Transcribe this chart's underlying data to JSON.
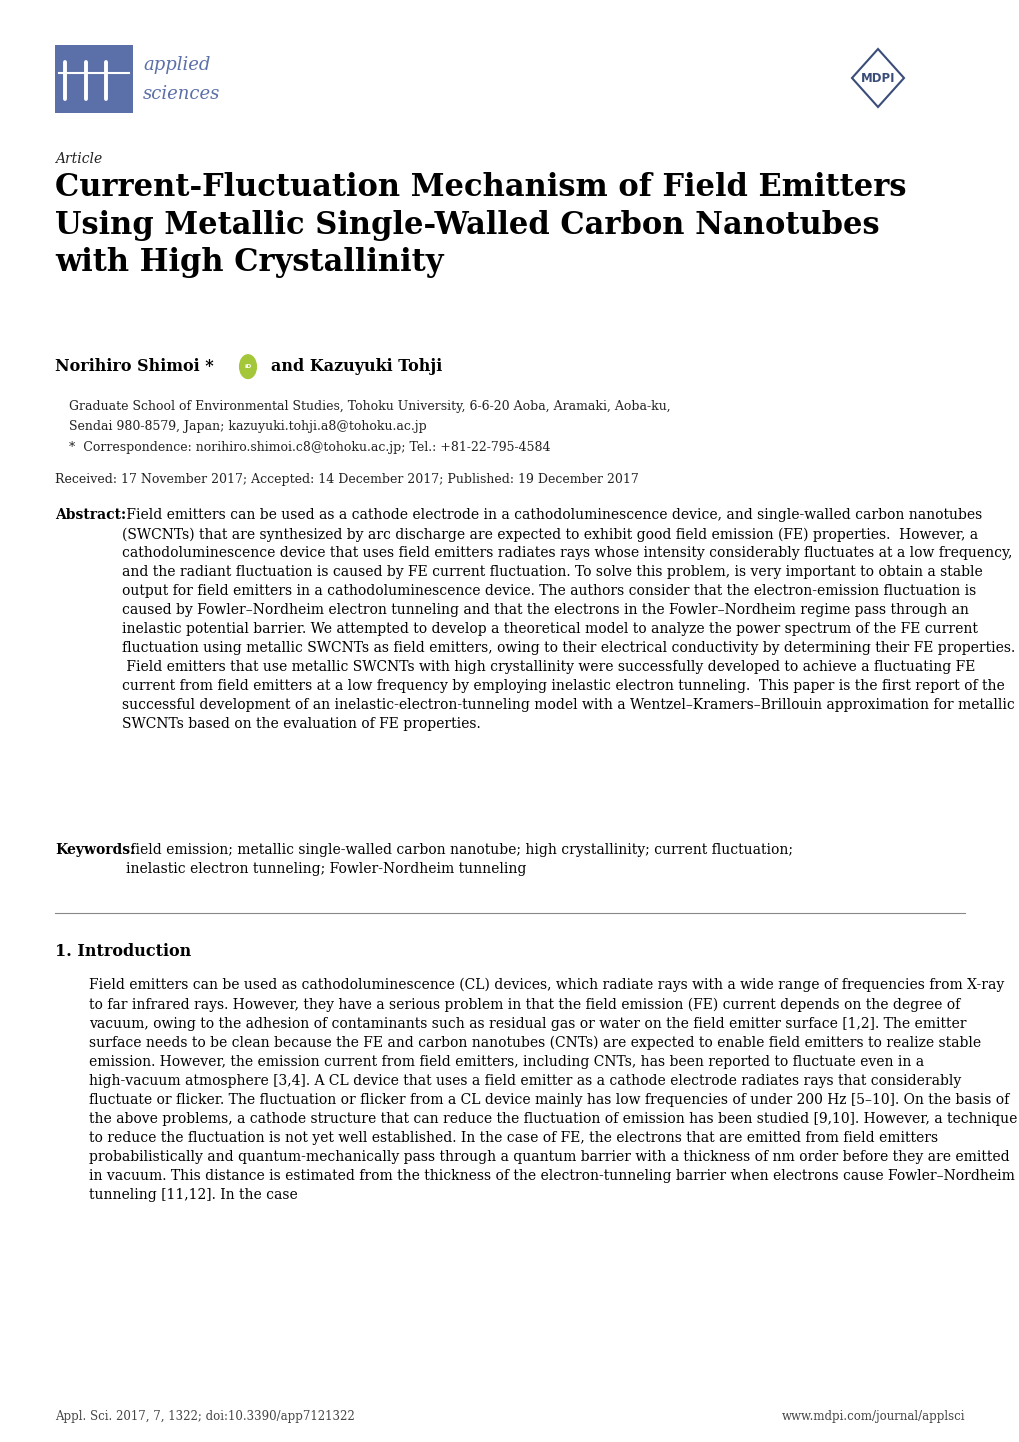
{
  "bg_color": "#ffffff",
  "page_width": 10.2,
  "page_height": 14.42,
  "journal_name_line1": "applied",
  "journal_name_line2": "sciences",
  "article_label": "Article",
  "title": "Current-Fluctuation Mechanism of Field Emitters\nUsing Metallic Single-Walled Carbon Nanotubes\nwith High Crystallinity",
  "affiliation1": "Graduate School of Environmental Studies, Tohoku University, 6-6-20 Aoba, Aramaki, Aoba-ku,",
  "affiliation2": "Sendai 980-8579, Japan; kazuyuki.tohji.a8@tohoku.ac.jp",
  "correspondence": "*  Correspondence: norihiro.shimoi.c8@tohoku.ac.jp; Tel.: +81-22-795-4584",
  "received": "Received: 17 November 2017; Accepted: 14 December 2017; Published: 19 December 2017",
  "abstract_label": "Abstract:",
  "abstract_text": " Field emitters can be used as a cathode electrode in a cathodoluminescence device, and single-walled carbon nanotubes (SWCNTs) that are synthesized by arc discharge are expected to exhibit good field emission (FE) properties.  However, a cathodoluminescence device that uses field emitters radiates rays whose intensity considerably fluctuates at a low frequency, and the radiant fluctuation is caused by FE current fluctuation. To solve this problem, is very important to obtain a stable output for field emitters in a cathodoluminescence device. The authors consider that the electron-emission fluctuation is caused by Fowler–Nordheim electron tunneling and that the electrons in the Fowler–Nordheim regime pass through an inelastic potential barrier. We attempted to develop a theoretical model to analyze the power spectrum of the FE current fluctuation using metallic SWCNTs as field emitters, owing to their electrical conductivity by determining their FE properties.  Field emitters that use metallic SWCNTs with high crystallinity were successfully developed to achieve a fluctuating FE current from field emitters at a low frequency by employing inelastic electron tunneling.  This paper is the first report of the successful development of an inelastic-electron-tunneling model with a Wentzel–Kramers–Brillouin approximation for metallic SWCNTs based on the evaluation of FE properties.",
  "keywords_label": "Keywords:",
  "keywords_text": " field emission; metallic single-walled carbon nanotube; high crystallinity; current fluctuation;\ninelastic electron tunneling; Fowler-Nordheim tunneling",
  "section1_title": "1. Introduction",
  "intro_text": "Field emitters can be used as cathodoluminescence (CL) devices, which radiate rays with a wide range of frequencies from X-ray to far infrared rays. However, they have a serious problem in that the field emission (FE) current depends on the degree of vacuum, owing to the adhesion of contaminants such as residual gas or water on the field emitter surface [1,2]. The emitter surface needs to be clean because the FE and carbon nanotubes (CNTs) are expected to enable field emitters to realize stable emission. However, the emission current from field emitters, including CNTs, has been reported to fluctuate even in a high-vacuum atmosphere [3,4]. A CL device that uses a field emitter as a cathode electrode radiates rays that considerably fluctuate or flicker. The fluctuation or flicker from a CL device mainly has low frequencies of under 200 Hz [5–10]. On the basis of the above problems, a cathode structure that can reduce the fluctuation of emission has been studied [9,10]. However, a technique to reduce the fluctuation is not yet well established. In the case of FE, the electrons that are emitted from field emitters probabilistically and quantum-mechanically pass through a quantum barrier with a thickness of nm order before they are emitted in vacuum. This distance is estimated from the thickness of the electron-tunneling barrier when electrons cause Fowler–Nordheim tunneling [11,12]. In the case",
  "footer_left": "Appl. Sci. 2017, 7, 1322; doi:10.3390/app7121322",
  "footer_right": "www.mdpi.com/journal/applsci",
  "logo_color": "#5b6fa8",
  "mdpi_color": "#3a4d7a",
  "text_color": "#000000"
}
